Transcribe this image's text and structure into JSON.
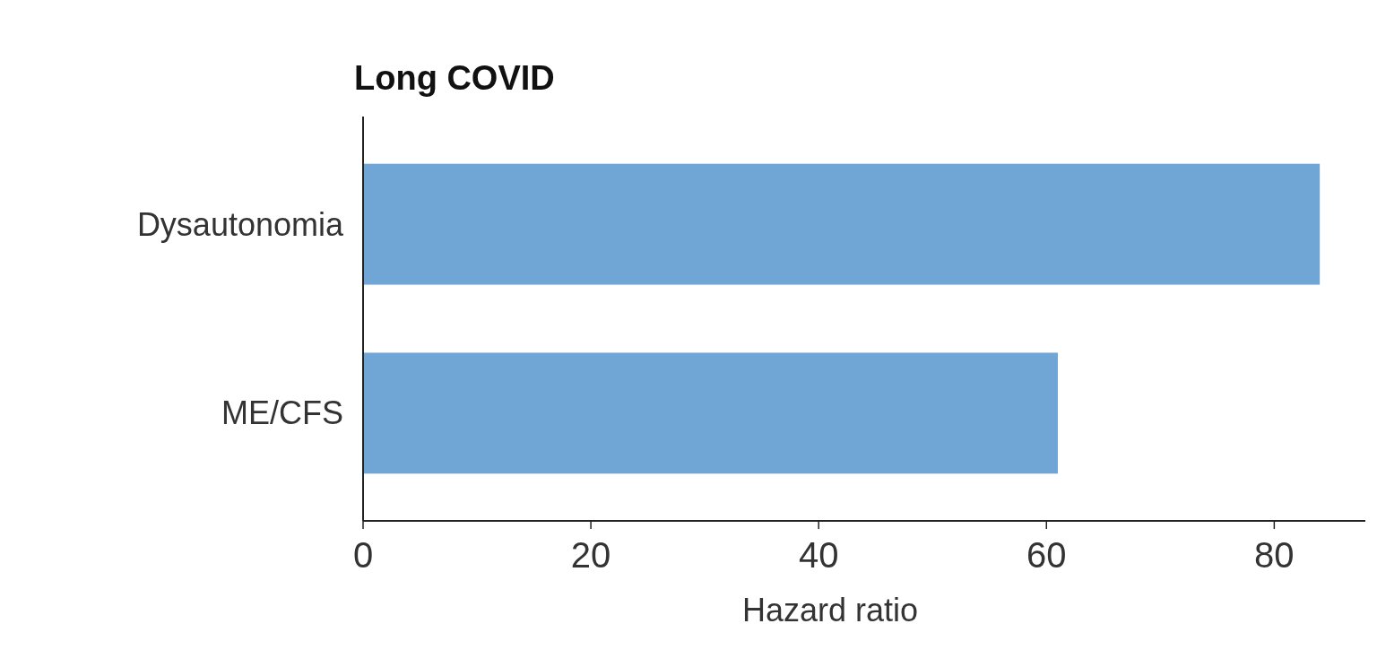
{
  "chart_data": {
    "type": "bar",
    "orientation": "horizontal",
    "title": "Long COVID",
    "xlabel": "Hazard ratio",
    "categories": [
      "Dysautonomia",
      "ME/CFS"
    ],
    "values": [
      84,
      61
    ],
    "color": "#6fa6d6",
    "xlim": [
      0,
      88
    ],
    "xticks": [
      0,
      20,
      40,
      60,
      80
    ]
  }
}
